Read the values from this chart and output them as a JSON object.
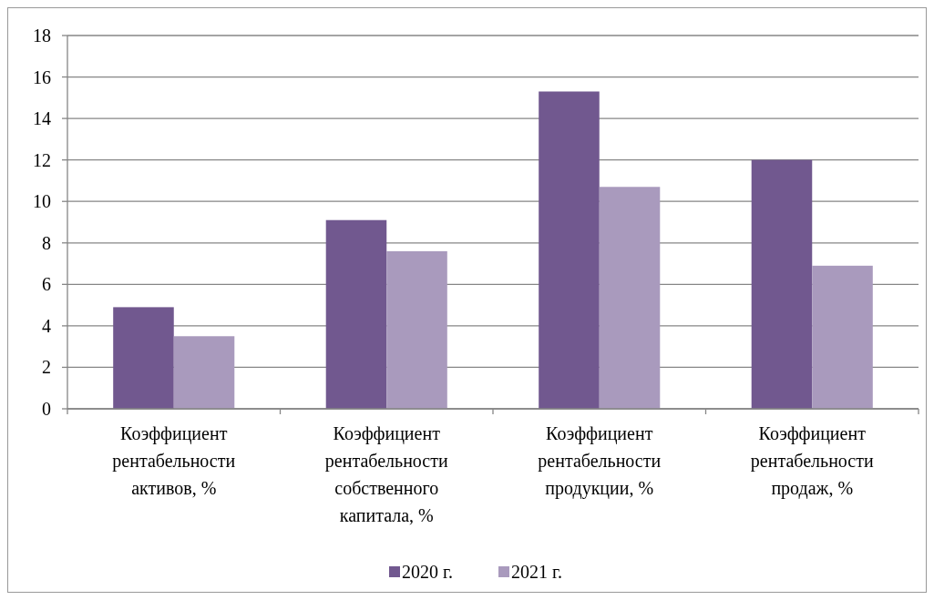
{
  "chart_data": {
    "type": "bar",
    "categories": [
      "Коэффициент рентабельности активов, %",
      "Коэффициент рентабельности собственного капитала, %",
      "Коэффициент рентабельности продукции, %",
      "Коэффициент рентабельности продаж, %"
    ],
    "series": [
      {
        "name": "2020 г.",
        "color": "#71588f",
        "values": [
          4.9,
          9.1,
          15.3,
          12.0
        ]
      },
      {
        "name": "2021 г.",
        "color": "#a99abd",
        "values": [
          3.5,
          7.6,
          10.7,
          6.9
        ]
      }
    ],
    "ylim": [
      0,
      18
    ],
    "yticks": [
      0,
      2,
      4,
      6,
      8,
      10,
      12,
      14,
      16,
      18
    ],
    "grid": "y",
    "legend": "bottom"
  }
}
